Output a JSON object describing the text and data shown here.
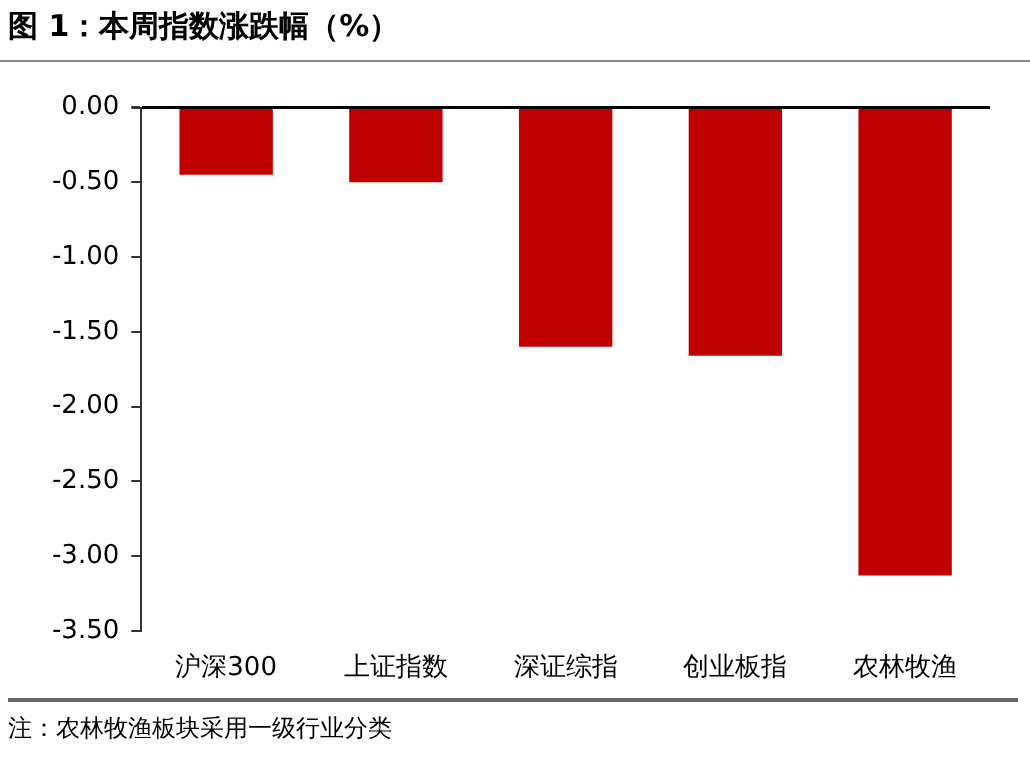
{
  "chart_data": {
    "type": "bar",
    "title": "图 1：本周指数涨跌幅（%）",
    "categories": [
      "沪深300",
      "上证指数",
      "深证综指",
      "创业板指",
      "农林牧渔"
    ],
    "values": [
      -0.45,
      -0.5,
      -1.6,
      -1.66,
      -3.13
    ],
    "color": "#c00000",
    "ylim": [
      -3.5,
      0
    ],
    "yticks": [
      {
        "value": 0,
        "label": "0.00"
      },
      {
        "value": -0.5,
        "label": "-0.50"
      },
      {
        "value": -1,
        "label": "-1.00"
      },
      {
        "value": -1.5,
        "label": "-1.50"
      },
      {
        "value": -2,
        "label": "-2.00"
      },
      {
        "value": -2.5,
        "label": "-2.50"
      },
      {
        "value": -3,
        "label": "-3.00"
      },
      {
        "value": -3.5,
        "label": "-3.50"
      }
    ],
    "grid": false,
    "legend": false,
    "annotations": [
      "注：农林牧渔板块采用一级行业分类"
    ]
  }
}
